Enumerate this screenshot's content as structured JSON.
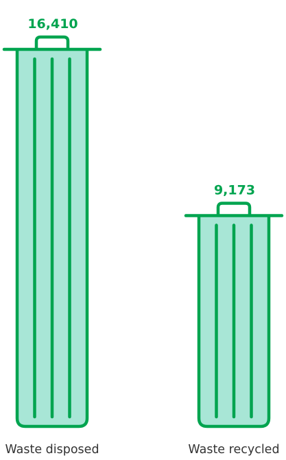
{
  "chart_data": {
    "type": "bar",
    "categories": [
      "Waste disposed",
      "Waste recycled"
    ],
    "values": [
      16410,
      9173
    ],
    "value_labels": [
      "16,410",
      "9,173"
    ],
    "ylim": [
      0,
      16410
    ],
    "grid": false,
    "legend": "none",
    "colors": {
      "stroke": "#00A44F",
      "fill": "#A8E6D6",
      "value_text": "#00A44F",
      "category_text": "#333333"
    },
    "icon": "trash-bin-icon"
  }
}
